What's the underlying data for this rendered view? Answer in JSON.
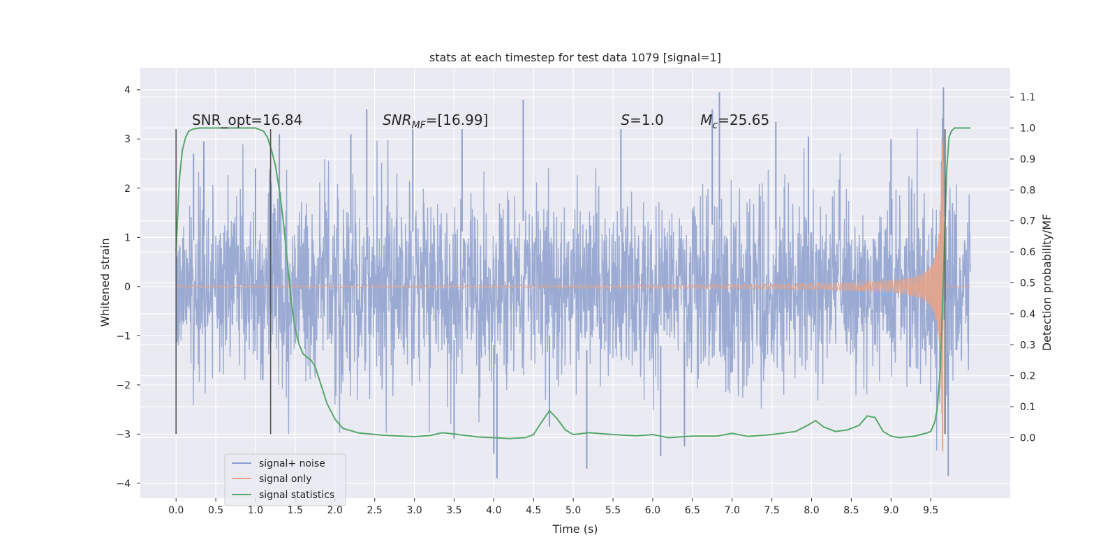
{
  "chart_data": {
    "type": "line",
    "title": "stats at each timestep for test data 1079 [signal=1]",
    "xlabel": "Time (s)",
    "ylabel": "Whitened strain",
    "ylabel_right": "Detection probability/MF",
    "xlim": [
      -0.45,
      10.5
    ],
    "ylim": [
      -4.3,
      4.45
    ],
    "ylim_right": [
      -0.195,
      1.195
    ],
    "x_ticks": [
      "0.0",
      "0.5",
      "1.0",
      "1.5",
      "2.0",
      "2.5",
      "3.0",
      "3.5",
      "4.0",
      "4.5",
      "5.0",
      "5.5",
      "6.0",
      "6.5",
      "7.0",
      "7.5",
      "8.0",
      "8.5",
      "9.0",
      "9.5"
    ],
    "y_ticks": [
      "−4",
      "−3",
      "−2",
      "−1",
      "0",
      "1",
      "2",
      "3",
      "4"
    ],
    "y_ticks_right": [
      "0.0",
      "0.1",
      "0.2",
      "0.3",
      "0.4",
      "0.5",
      "0.6",
      "0.7",
      "0.8",
      "0.9",
      "1.0",
      "1.1"
    ],
    "grid": true,
    "legend_position": "lower-left",
    "annotations": [
      {
        "text": "SNR_opt=16.84",
        "x": 0.2
      },
      {
        "text": "SNR",
        "sub": "MF",
        "suffix": "=[16.99]",
        "x": 2.6
      },
      {
        "text": "S",
        "suffix": "=1.0",
        "x": 5.6
      },
      {
        "text": "M",
        "sub": "c",
        "suffix": "=25.65",
        "x": 6.6
      }
    ],
    "annotation_y": 3.2,
    "vertical_markers": [
      {
        "x": 0.0,
        "y_range": [
          -3.0,
          3.2
        ]
      },
      {
        "x": 1.19,
        "y_range": [
          -3.0,
          3.2
        ]
      },
      {
        "x": 9.68,
        "y_range": [
          -3.0,
          3.2
        ]
      }
    ],
    "series": [
      {
        "name": "signal+ noise",
        "color": "#8c9fcc",
        "axis": "left",
        "kind": "noise",
        "x_range": [
          0.0,
          10.0
        ],
        "sigma": 1.0,
        "peaks": [
          {
            "x": 0.22,
            "y": 2.7
          },
          {
            "x": 0.35,
            "y": 2.95
          },
          {
            "x": 1.0,
            "y": 2.4
          },
          {
            "x": 1.3,
            "y": 3.1
          },
          {
            "x": 2.4,
            "y": 3.6
          },
          {
            "x": 2.2,
            "y": 3.1
          },
          {
            "x": 2.98,
            "y": 3.2
          },
          {
            "x": 3.6,
            "y": 3.2
          },
          {
            "x": 4.37,
            "y": 3.8
          },
          {
            "x": 5.6,
            "y": 3.2
          },
          {
            "x": 6.84,
            "y": 3.95
          },
          {
            "x": 6.75,
            "y": 3.6
          },
          {
            "x": 7.55,
            "y": 3.35
          },
          {
            "x": 7.96,
            "y": 3.05
          },
          {
            "x": 9.0,
            "y": 3.0
          },
          {
            "x": 9.66,
            "y": 4.05
          },
          {
            "x": 4.0,
            "y": -3.4
          },
          {
            "x": 4.04,
            "y": -3.9
          },
          {
            "x": 5.17,
            "y": -3.7
          },
          {
            "x": 6.1,
            "y": -3.45
          },
          {
            "x": 6.4,
            "y": -3.25
          },
          {
            "x": 3.5,
            "y": -3.1
          },
          {
            "x": 9.72,
            "y": -3.85
          },
          {
            "x": 4.7,
            "y": -2.85
          }
        ]
      },
      {
        "name": "signal only",
        "color": "#e5a48a",
        "axis": "left",
        "kind": "chirp",
        "x_range": [
          0.0,
          10.0
        ],
        "merger_time": 9.66,
        "peak_amplitude": 3.3
      },
      {
        "name": "signal statistics",
        "color": "#55a868",
        "axis": "right",
        "kind": "curve",
        "x": [
          0.0,
          0.04,
          0.08,
          0.12,
          0.16,
          0.22,
          0.3,
          0.5,
          0.8,
          1.0,
          1.1,
          1.15,
          1.2,
          1.25,
          1.3,
          1.35,
          1.4,
          1.45,
          1.5,
          1.55,
          1.6,
          1.7,
          1.75,
          1.8,
          1.85,
          1.9,
          2.0,
          2.1,
          2.3,
          2.6,
          3.0,
          3.2,
          3.35,
          3.5,
          3.8,
          4.0,
          4.2,
          4.4,
          4.5,
          4.6,
          4.7,
          4.8,
          4.9,
          5.0,
          5.2,
          5.5,
          5.8,
          6.0,
          6.2,
          6.5,
          6.8,
          7.0,
          7.2,
          7.5,
          7.8,
          7.95,
          8.05,
          8.15,
          8.3,
          8.45,
          8.6,
          8.7,
          8.8,
          8.9,
          9.0,
          9.1,
          9.3,
          9.45,
          9.5,
          9.55,
          9.58,
          9.62,
          9.66,
          9.7,
          9.73,
          9.76,
          9.8,
          9.85,
          9.95,
          10.0
        ],
        "y": [
          0.6,
          0.83,
          0.93,
          0.97,
          0.99,
          0.997,
          1.0,
          1.0,
          1.0,
          1.0,
          0.99,
          0.97,
          0.93,
          0.88,
          0.8,
          0.7,
          0.57,
          0.44,
          0.35,
          0.3,
          0.27,
          0.25,
          0.23,
          0.19,
          0.15,
          0.11,
          0.06,
          0.03,
          0.015,
          0.008,
          0.003,
          0.007,
          0.016,
          0.012,
          0.002,
          0.0,
          -0.003,
          0.0,
          0.01,
          0.05,
          0.087,
          0.06,
          0.025,
          0.01,
          0.016,
          0.01,
          0.006,
          0.01,
          0.0,
          0.005,
          0.005,
          0.014,
          0.004,
          0.01,
          0.02,
          0.04,
          0.055,
          0.035,
          0.02,
          0.025,
          0.04,
          0.07,
          0.065,
          0.02,
          0.005,
          0.0,
          0.005,
          0.015,
          0.02,
          0.05,
          0.09,
          0.22,
          0.52,
          0.86,
          0.97,
          0.99,
          1.0,
          1.0,
          1.0,
          1.0
        ]
      }
    ]
  }
}
